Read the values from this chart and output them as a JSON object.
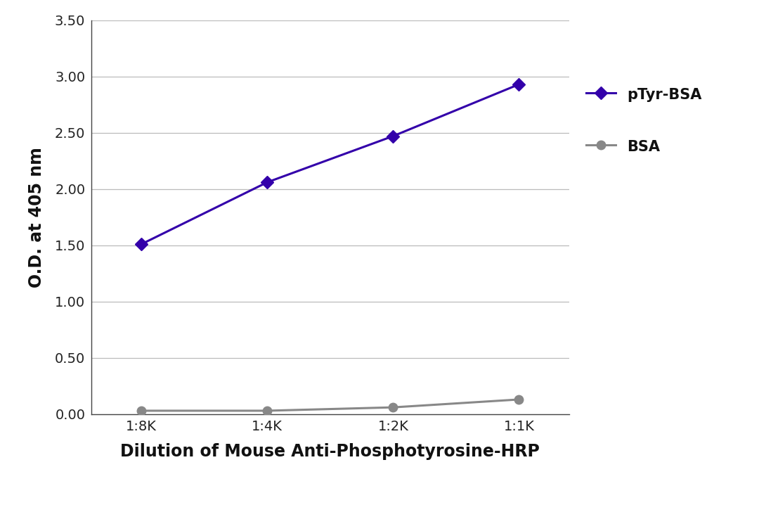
{
  "x_labels": [
    "1:8K",
    "1:4K",
    "1:2K",
    "1:1K"
  ],
  "x_positions": [
    0,
    1,
    2,
    3
  ],
  "pTyr_BSA_values": [
    1.51,
    2.06,
    2.47,
    2.93
  ],
  "BSA_values": [
    0.03,
    0.03,
    0.06,
    0.13
  ],
  "pTyr_BSA_color": "#3300AA",
  "BSA_color": "#888888",
  "pTyr_BSA_label": "pTyr-BSA",
  "BSA_label": "BSA",
  "xlabel": "Dilution of Mouse Anti-Phosphotyrosine-HRP",
  "ylabel": "O.D. at 405 nm",
  "ylim": [
    0.0,
    3.5
  ],
  "yticks": [
    0.0,
    0.5,
    1.0,
    1.5,
    2.0,
    2.5,
    3.0,
    3.5
  ],
  "ytick_labels": [
    "0.00",
    "0.50",
    "1.00",
    "1.50",
    "2.00",
    "2.50",
    "3.00",
    "3.50"
  ],
  "line_width": 2.2,
  "marker_size": 9,
  "background_color": "#ffffff",
  "grid_color": "#bbbbbb",
  "legend_fontsize": 15,
  "axis_label_fontsize": 17,
  "tick_fontsize": 14,
  "xlim": [
    -0.4,
    3.4
  ]
}
